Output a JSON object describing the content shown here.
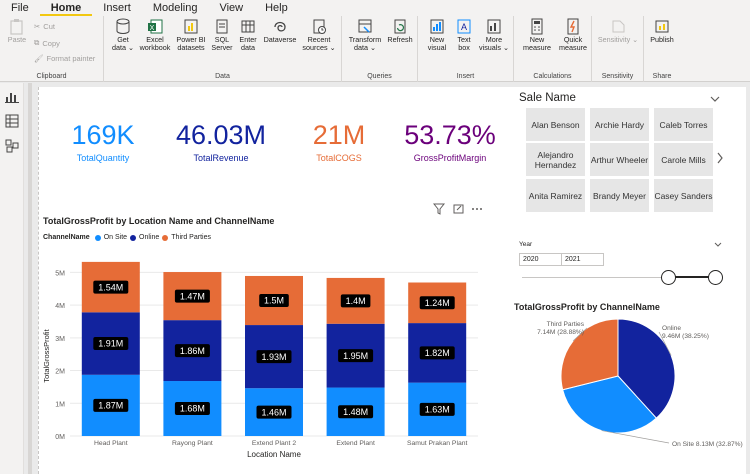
{
  "menu": [
    "File",
    "Home",
    "Insert",
    "Modeling",
    "View",
    "Help"
  ],
  "active_menu": "Home",
  "ribbon": {
    "groups": [
      {
        "label": "Clipboard",
        "buttons": [
          {
            "label": "Paste",
            "icon": "paste-icon"
          }
        ],
        "small": [
          "Cut",
          "Copy",
          "Format painter"
        ]
      },
      {
        "label": "Data",
        "buttons": [
          {
            "label": "Get data ⌄",
            "icon": "database-icon"
          },
          {
            "label": "Excel workbook",
            "icon": "excel-icon"
          },
          {
            "label": "Power BI datasets",
            "icon": "datasets-icon"
          },
          {
            "label": "SQL Server",
            "icon": "sql-icon"
          },
          {
            "label": "Enter data",
            "icon": "table-icon"
          },
          {
            "label": "Dataverse",
            "icon": "dataverse-icon"
          },
          {
            "label": "Recent sources ⌄",
            "icon": "recent-icon"
          }
        ]
      },
      {
        "label": "Queries",
        "buttons": [
          {
            "label": "Transform data ⌄",
            "icon": "transform-icon"
          },
          {
            "label": "Refresh",
            "icon": "refresh-icon"
          }
        ]
      },
      {
        "label": "Insert",
        "buttons": [
          {
            "label": "New visual",
            "icon": "chart-icon"
          },
          {
            "label": "Text box",
            "icon": "textbox-icon"
          },
          {
            "label": "More visuals ⌄",
            "icon": "more-visuals-icon"
          }
        ]
      },
      {
        "label": "Calculations",
        "buttons": [
          {
            "label": "New measure",
            "icon": "calculator-icon"
          },
          {
            "label": "Quick measure",
            "icon": "quick-measure-icon"
          }
        ]
      },
      {
        "label": "Sensitivity",
        "buttons": [
          {
            "label": "Sensitivity ⌄",
            "icon": "sensitivity-icon"
          }
        ]
      },
      {
        "label": "Share",
        "buttons": [
          {
            "label": "Publish",
            "icon": "publish-icon"
          }
        ]
      }
    ]
  },
  "cards": [
    {
      "value": "169K",
      "label": "TotalQuantity",
      "color": "#118dff"
    },
    {
      "value": "46.03M",
      "label": "TotalRevenue",
      "color": "#12239e"
    },
    {
      "value": "21M",
      "label": "TotalCOGS",
      "color": "#e66c37"
    },
    {
      "value": "53.73%",
      "label": "GrossProfitMargin",
      "color": "#6b007b"
    }
  ],
  "bar_chart_data": {
    "type": "bar",
    "title": "TotalGrossProfit by Location Name and ChannelName",
    "legend_title": "ChannelName",
    "categories": [
      "Head Plant",
      "Rayong Plant",
      "Extend Plant 2",
      "Extend Plant",
      "Samut Prakan Plant"
    ],
    "series": [
      {
        "name": "On Site",
        "color": "#118dff",
        "values": [
          1.87,
          1.68,
          1.46,
          1.48,
          1.63
        ],
        "labels": [
          "1.87M",
          "1.68M",
          "1.46M",
          "1.48M",
          "1.63M"
        ]
      },
      {
        "name": "Online",
        "color": "#12239e",
        "values": [
          1.91,
          1.86,
          1.93,
          1.95,
          1.82
        ],
        "labels": [
          "1.91M",
          "1.86M",
          "1.93M",
          "1.95M",
          "1.82M"
        ]
      },
      {
        "name": "Third Parties",
        "color": "#e66c37",
        "values": [
          1.54,
          1.47,
          1.5,
          1.4,
          1.24
        ],
        "labels": [
          "1.54M",
          "1.47M",
          "1.5M",
          "1.4M",
          "1.24M"
        ]
      }
    ],
    "xlabel": "Location Name",
    "ylabel": "TotalGrossProfit",
    "ylim": [
      0,
      5.5
    ],
    "yticks": [
      0,
      1,
      2,
      3,
      4,
      5
    ],
    "ytick_labels": [
      "0M",
      "1M",
      "2M",
      "3M",
      "4M",
      "5M"
    ],
    "stacked": true
  },
  "slicer": {
    "title": "Sale Name",
    "items": [
      "Alan Benson",
      "Archie Hardy",
      "Caleb Torres",
      "Alejandro Hernandez",
      "Arthur Wheeler",
      "Carole Mills",
      "Anita Ramirez",
      "Brandy Meyer",
      "Casey Sanders"
    ]
  },
  "year_slicer": {
    "label": "Year",
    "from": "2020",
    "to": "2021"
  },
  "pie_chart_data": {
    "type": "pie",
    "title": "TotalGrossProfit by ChannelName",
    "slices": [
      {
        "name": "Online",
        "value": 9.46,
        "value_label": "9.46M (38.25%)",
        "percent": 38.25,
        "color": "#12239e"
      },
      {
        "name": "On Site",
        "value": 8.13,
        "value_label": "8.13M (32.87%)",
        "percent": 32.87,
        "color": "#118dff"
      },
      {
        "name": "Third Parties",
        "value": 7.14,
        "value_label": "7.14M (28.88%)",
        "percent": 28.88,
        "color": "#e66c37"
      }
    ]
  }
}
